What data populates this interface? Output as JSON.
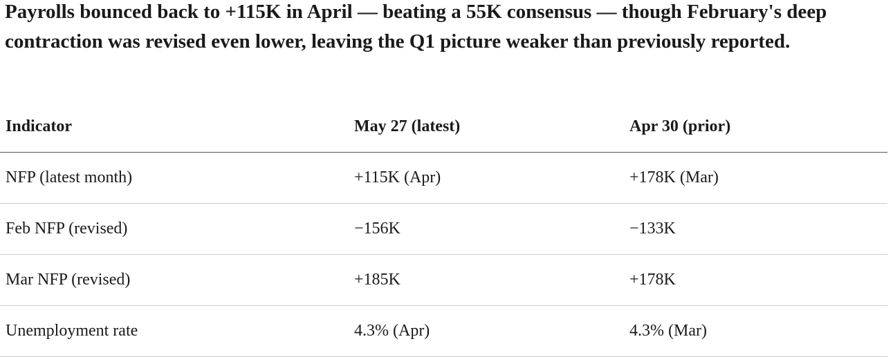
{
  "intro": "Payrolls bounced back to +115K in April — beating a 55K consensus — though February's deep contraction was revised even lower, leaving the Q1 picture weaker than previously reported.",
  "table": {
    "headers": [
      "Indicator",
      "May 27 (latest)",
      "Apr 30 (prior)"
    ],
    "rows": [
      [
        "NFP (latest month)",
        "+115K (Apr)",
        "+178K (Mar)"
      ],
      [
        "Feb NFP (revised)",
        "−156K",
        "−133K"
      ],
      [
        "Mar NFP (revised)",
        "+185K",
        "+178K"
      ],
      [
        "Unemployment rate",
        "4.3% (Apr)",
        "4.3% (Mar)"
      ]
    ]
  }
}
